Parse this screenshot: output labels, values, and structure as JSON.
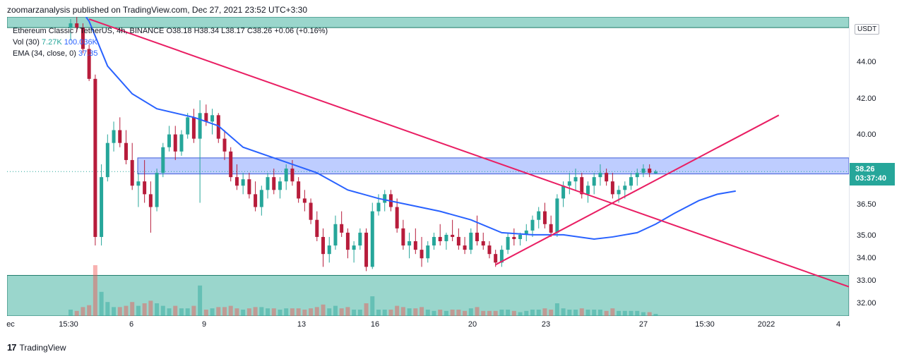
{
  "header": {
    "publish_line": "zoomarzanalysis published on TradingView.com, Dec 27, 2021 23:52 UTC+3:30"
  },
  "legend": {
    "symbol": "Ethereum Classic / TetherUS, 4h, BINANCE",
    "ohlc": "O38.18  H38.34  L38.17  C38.26  +0.06 (+0.16%)",
    "vol_label": "Vol (30)",
    "vol_value1": "7.27K",
    "vol_value2": "100.036K",
    "ema_label": "EMA (34, close, 0)",
    "ema_value": "37.35"
  },
  "price_axis": {
    "currency": "USDT",
    "top_partial": "4",
    "ticks": [
      "44.00",
      "42.00",
      "40.00",
      "36.50",
      "35.00",
      "34.00",
      "33.00",
      "32.00"
    ],
    "last_price": "38.26",
    "countdown": "03:37:40"
  },
  "time_axis": {
    "ticks": [
      "ec",
      "15:30",
      "6",
      "9",
      "13",
      "16",
      "20",
      "23",
      "27",
      "15:30",
      "2022",
      "4"
    ]
  },
  "footer": {
    "brand": "TradingView",
    "logo": "17"
  },
  "colors": {
    "up": "#26a69a",
    "down": "#ef5350",
    "candle_dark": "#b71c3b",
    "ema": "#2962ff",
    "trendline": "#e91e63",
    "resistance_zone": "#b3c4ff",
    "support_zone": "#8fd1c6"
  },
  "chart_data": {
    "type": "candlestick",
    "title": "Ethereum Classic / TetherUS, 4h, BINANCE",
    "ylabel": "USDT",
    "ylim": [
      31.5,
      45.5
    ],
    "last_price": 38.26,
    "indicators": [
      "Vol (30)",
      "EMA (34, close, 0)"
    ],
    "ema_path": [
      [
        0,
        46.5
      ],
      [
        3,
        45.3
      ],
      [
        6,
        43.2
      ],
      [
        10,
        41.9
      ],
      [
        14,
        41.2
      ],
      [
        20,
        40.8
      ],
      [
        24,
        40.4
      ],
      [
        28,
        39.4
      ],
      [
        34,
        38.8
      ],
      [
        40,
        38.2
      ],
      [
        45,
        37.4
      ],
      [
        50,
        37.0
      ],
      [
        55,
        36.7
      ],
      [
        60,
        36.4
      ],
      [
        65,
        36.0
      ],
      [
        70,
        35.4
      ],
      [
        75,
        35.3
      ],
      [
        80,
        35.3
      ],
      [
        85,
        35.1
      ],
      [
        88,
        35.2
      ],
      [
        92,
        35.4
      ],
      [
        95,
        35.8
      ],
      [
        98,
        36.3
      ],
      [
        102,
        36.9
      ],
      [
        105,
        37.2
      ],
      [
        108,
        37.35
      ]
    ],
    "candles": [
      [
        0,
        45.0,
        45.4,
        44.4,
        45.2
      ],
      [
        1,
        45.2,
        45.6,
        44.8,
        45.0
      ],
      [
        2,
        45.0,
        45.2,
        43.8,
        44.0
      ],
      [
        3,
        44.0,
        44.2,
        42.5,
        42.6
      ],
      [
        4,
        42.6,
        42.8,
        34.8,
        35.2
      ],
      [
        5,
        35.2,
        38.6,
        34.8,
        38.0
      ],
      [
        6,
        38.0,
        40.0,
        37.8,
        39.6
      ],
      [
        7,
        39.6,
        40.6,
        39.2,
        40.2
      ],
      [
        8,
        40.2,
        40.8,
        39.4,
        39.6
      ],
      [
        9,
        39.6,
        40.2,
        38.6,
        38.8
      ],
      [
        10,
        38.8,
        39.6,
        37.4,
        37.6
      ],
      [
        11,
        37.6,
        38.2,
        36.6,
        37.8
      ],
      [
        12,
        37.8,
        38.8,
        36.8,
        37.2
      ],
      [
        13,
        37.2,
        37.8,
        35.4,
        36.6
      ],
      [
        14,
        36.6,
        38.4,
        36.4,
        38.2
      ],
      [
        15,
        38.2,
        39.6,
        38.0,
        39.4
      ],
      [
        16,
        39.4,
        40.4,
        39.2,
        40.0
      ],
      [
        17,
        40.0,
        40.4,
        38.8,
        39.2
      ],
      [
        18,
        39.2,
        40.2,
        39.0,
        40.0
      ],
      [
        19,
        40.0,
        41.0,
        39.8,
        40.8
      ],
      [
        20,
        40.8,
        41.2,
        39.6,
        39.8
      ],
      [
        21,
        39.8,
        41.6,
        36.8,
        41.0
      ],
      [
        22,
        41.0,
        41.4,
        40.4,
        40.6
      ],
      [
        23,
        40.6,
        41.2,
        40.0,
        40.9
      ],
      [
        24,
        40.9,
        41.0,
        39.6,
        39.8
      ],
      [
        25,
        39.8,
        40.2,
        38.8,
        39.2
      ],
      [
        26,
        39.2,
        39.4,
        37.8,
        38.0
      ],
      [
        27,
        38.0,
        38.6,
        37.4,
        37.6
      ],
      [
        28,
        37.6,
        38.2,
        37.2,
        37.9
      ],
      [
        29,
        37.9,
        38.2,
        37.0,
        37.2
      ],
      [
        30,
        37.2,
        37.8,
        36.4,
        36.6
      ],
      [
        31,
        36.6,
        37.6,
        36.2,
        37.4
      ],
      [
        32,
        37.4,
        38.2,
        37.0,
        38.0
      ],
      [
        33,
        38.0,
        38.4,
        37.2,
        37.4
      ],
      [
        34,
        37.4,
        38.0,
        37.0,
        37.8
      ],
      [
        35,
        37.8,
        38.6,
        37.4,
        38.4
      ],
      [
        36,
        38.4,
        38.8,
        37.6,
        37.8
      ],
      [
        37,
        37.8,
        38.0,
        36.8,
        37.0
      ],
      [
        38,
        37.0,
        37.4,
        36.4,
        36.8
      ],
      [
        39,
        36.8,
        37.0,
        35.8,
        36.0
      ],
      [
        40,
        36.0,
        36.4,
        35.0,
        35.2
      ],
      [
        41,
        35.2,
        35.6,
        33.8,
        34.4
      ],
      [
        42,
        34.4,
        35.2,
        34.0,
        34.8
      ],
      [
        43,
        34.8,
        36.2,
        34.6,
        35.8
      ],
      [
        44,
        35.8,
        36.4,
        35.2,
        35.4
      ],
      [
        45,
        35.4,
        35.6,
        34.2,
        34.6
      ],
      [
        46,
        34.6,
        35.0,
        34.0,
        34.8
      ],
      [
        47,
        34.8,
        35.6,
        34.6,
        35.4
      ],
      [
        48,
        35.4,
        35.6,
        33.6,
        33.8
      ],
      [
        49,
        33.8,
        36.8,
        33.7,
        36.4
      ],
      [
        50,
        36.4,
        37.2,
        36.2,
        36.8
      ],
      [
        51,
        36.8,
        37.4,
        36.4,
        37.2
      ],
      [
        52,
        37.2,
        37.4,
        36.4,
        36.6
      ],
      [
        53,
        36.6,
        37.0,
        35.4,
        35.6
      ],
      [
        54,
        35.6,
        36.0,
        34.6,
        34.8
      ],
      [
        55,
        34.8,
        35.4,
        34.2,
        35.0
      ],
      [
        56,
        35.0,
        35.6,
        34.4,
        34.6
      ],
      [
        57,
        34.6,
        35.2,
        33.8,
        34.2
      ],
      [
        58,
        34.2,
        35.0,
        34.0,
        34.8
      ],
      [
        59,
        34.8,
        35.4,
        34.6,
        35.2
      ],
      [
        60,
        35.2,
        35.8,
        34.8,
        35.0
      ],
      [
        61,
        35.0,
        35.4,
        34.6,
        35.3
      ],
      [
        62,
        35.3,
        36.0,
        35.0,
        35.2
      ],
      [
        63,
        35.2,
        35.6,
        34.6,
        34.8
      ],
      [
        64,
        34.8,
        35.2,
        34.4,
        34.6
      ],
      [
        65,
        34.6,
        35.6,
        34.4,
        35.4
      ],
      [
        66,
        35.4,
        36.2,
        34.8,
        35.0
      ],
      [
        67,
        35.0,
        35.4,
        34.6,
        34.8
      ],
      [
        68,
        34.8,
        35.0,
        34.2,
        34.4
      ],
      [
        69,
        34.4,
        34.6,
        33.8,
        34.0
      ],
      [
        70,
        34.0,
        34.8,
        33.8,
        34.6
      ],
      [
        71,
        34.6,
        35.4,
        34.4,
        35.2
      ],
      [
        72,
        35.2,
        35.6,
        34.8,
        35.1
      ],
      [
        73,
        35.1,
        35.4,
        34.8,
        35.3
      ],
      [
        74,
        35.3,
        35.8,
        35.0,
        35.5
      ],
      [
        75,
        35.5,
        36.2,
        35.2,
        36.0
      ],
      [
        76,
        36.0,
        36.6,
        35.6,
        36.4
      ],
      [
        77,
        36.4,
        36.8,
        35.6,
        35.8
      ],
      [
        78,
        35.8,
        36.2,
        35.2,
        35.4
      ],
      [
        79,
        35.4,
        37.2,
        35.2,
        37.0
      ],
      [
        80,
        37.0,
        37.8,
        36.6,
        37.6
      ],
      [
        81,
        37.6,
        38.2,
        37.2,
        37.8
      ],
      [
        82,
        37.8,
        38.4,
        37.4,
        38.0
      ],
      [
        83,
        38.0,
        38.2,
        37.0,
        37.2
      ],
      [
        84,
        37.2,
        37.8,
        36.8,
        37.6
      ],
      [
        85,
        37.6,
        38.2,
        37.2,
        38.0
      ],
      [
        86,
        38.0,
        38.6,
        37.6,
        38.2
      ],
      [
        87,
        38.2,
        38.4,
        37.6,
        37.8
      ],
      [
        88,
        37.8,
        38.2,
        37.0,
        37.2
      ],
      [
        89,
        37.2,
        37.6,
        36.8,
        37.4
      ],
      [
        90,
        37.4,
        37.8,
        37.0,
        37.6
      ],
      [
        91,
        37.6,
        38.2,
        37.4,
        38.0
      ],
      [
        92,
        38.0,
        38.4,
        37.6,
        38.2
      ],
      [
        93,
        38.2,
        38.6,
        38.0,
        38.4
      ],
      [
        94,
        38.4,
        38.6,
        38.0,
        38.2
      ],
      [
        95,
        38.18,
        38.34,
        38.17,
        38.26
      ]
    ],
    "zones": [
      {
        "type": "resistance",
        "from": 38.15,
        "to": 38.9
      },
      {
        "type": "support",
        "from": 31.5,
        "to": 33.4
      },
      {
        "type": "support",
        "from": 45.0,
        "to": 45.5
      }
    ]
  }
}
